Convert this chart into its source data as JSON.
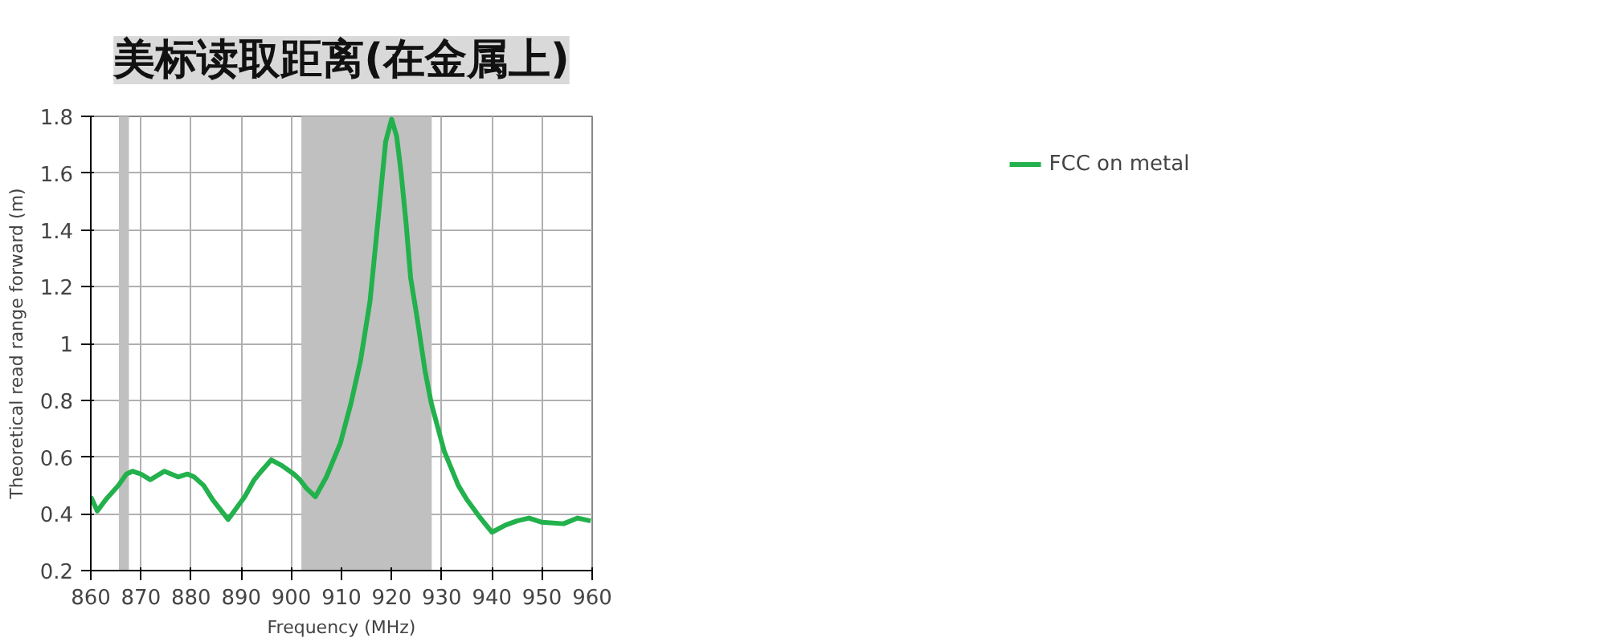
{
  "chart_data": {
    "type": "line",
    "title": "美标读取距离(在金属上)",
    "xlabel": "Frequency (MHz)",
    "ylabel": "Theoretical read range forward (m)",
    "xlim": [
      860,
      960
    ],
    "xticks": [
      860,
      870,
      880,
      890,
      900,
      910,
      920,
      930,
      940,
      950,
      960
    ],
    "ylim": [
      0.2,
      1.8
    ],
    "yticks": [
      0.2,
      0.4,
      0.6,
      0.8,
      {
        "value": 1,
        "label": "1"
      },
      1.2,
      1.4,
      1.6,
      1.8
    ],
    "grid": true,
    "legend": "right",
    "bands": [
      {
        "axis": "x",
        "from": 865.6,
        "to": 867.6,
        "color": "#c0c0c0"
      },
      {
        "axis": "x",
        "from": 902,
        "to": 928,
        "color": "#c0c0c0"
      }
    ],
    "series": [
      {
        "name": "FCC on metal",
        "color": "#22b14c",
        "x": [
          860,
          861.3,
          863,
          865.5,
          867.1,
          868.3,
          870,
          871.9,
          874.7,
          877.4,
          879.3,
          880.6,
          882.5,
          884.3,
          887.4,
          890.7,
          892.6,
          894,
          896,
          898.1,
          900.5,
          901.7,
          903,
          904.8,
          907,
          909.8,
          911.9,
          913.8,
          915.7,
          917.1,
          918.8,
          920,
          921,
          921.9,
          922.9,
          923.8,
          925,
          926.7,
          927.9,
          930.5,
          933.3,
          935,
          937.5,
          940,
          942.7,
          945,
          947.4,
          950,
          954.3,
          957.1,
          959.7
        ],
        "values": [
          0.46,
          0.41,
          0.45,
          0.5,
          0.54,
          0.55,
          0.54,
          0.52,
          0.55,
          0.53,
          0.54,
          0.53,
          0.5,
          0.45,
          0.38,
          0.46,
          0.52,
          0.55,
          0.59,
          0.57,
          0.54,
          0.52,
          0.49,
          0.46,
          0.53,
          0.65,
          0.79,
          0.94,
          1.15,
          1.4,
          1.71,
          1.79,
          1.73,
          1.6,
          1.42,
          1.23,
          1.1,
          0.9,
          0.79,
          0.62,
          0.5,
          0.45,
          0.39,
          0.335,
          0.36,
          0.375,
          0.385,
          0.37,
          0.365,
          0.385,
          0.375
        ]
      }
    ]
  }
}
